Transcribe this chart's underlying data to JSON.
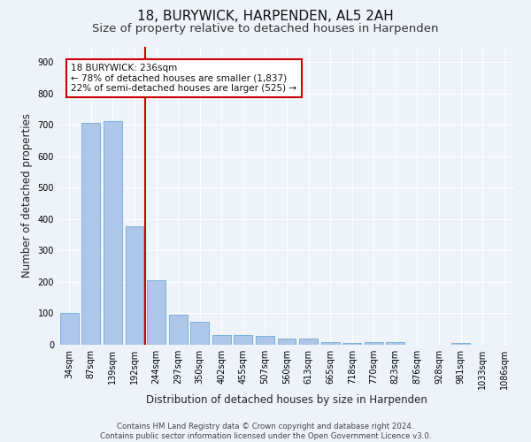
{
  "title": "18, BURYWICK, HARPENDEN, AL5 2AH",
  "subtitle": "Size of property relative to detached houses in Harpenden",
  "xlabel": "Distribution of detached houses by size in Harpenden",
  "ylabel": "Number of detached properties",
  "categories": [
    "34sqm",
    "87sqm",
    "139sqm",
    "192sqm",
    "244sqm",
    "297sqm",
    "350sqm",
    "402sqm",
    "455sqm",
    "507sqm",
    "560sqm",
    "613sqm",
    "665sqm",
    "718sqm",
    "770sqm",
    "823sqm",
    "876sqm",
    "928sqm",
    "981sqm",
    "1033sqm",
    "1086sqm"
  ],
  "values": [
    102,
    706,
    712,
    378,
    205,
    97,
    72,
    30,
    30,
    28,
    20,
    20,
    9,
    6,
    9,
    9,
    0,
    0,
    6,
    0,
    0
  ],
  "bar_color": "#aec6e8",
  "bar_edge_color": "#5a9fd4",
  "vline_color": "#cc0000",
  "vline_x_index": 3.5,
  "annotation_text": "18 BURYWICK: 236sqm\n← 78% of detached houses are smaller (1,837)\n22% of semi-detached houses are larger (525) →",
  "annotation_box_color": "#ffffff",
  "annotation_box_edge": "#cc0000",
  "ylim": [
    0,
    950
  ],
  "yticks": [
    0,
    100,
    200,
    300,
    400,
    500,
    600,
    700,
    800,
    900
  ],
  "footer": "Contains HM Land Registry data © Crown copyright and database right 2024.\nContains public sector information licensed under the Open Government Licence v3.0.",
  "bg_color": "#eef2f9",
  "grid_color": "#ffffff",
  "title_fontsize": 11,
  "subtitle_fontsize": 9.5,
  "axis_label_fontsize": 8.5,
  "tick_fontsize": 7,
  "ylabel_full": "Number of detached properties"
}
